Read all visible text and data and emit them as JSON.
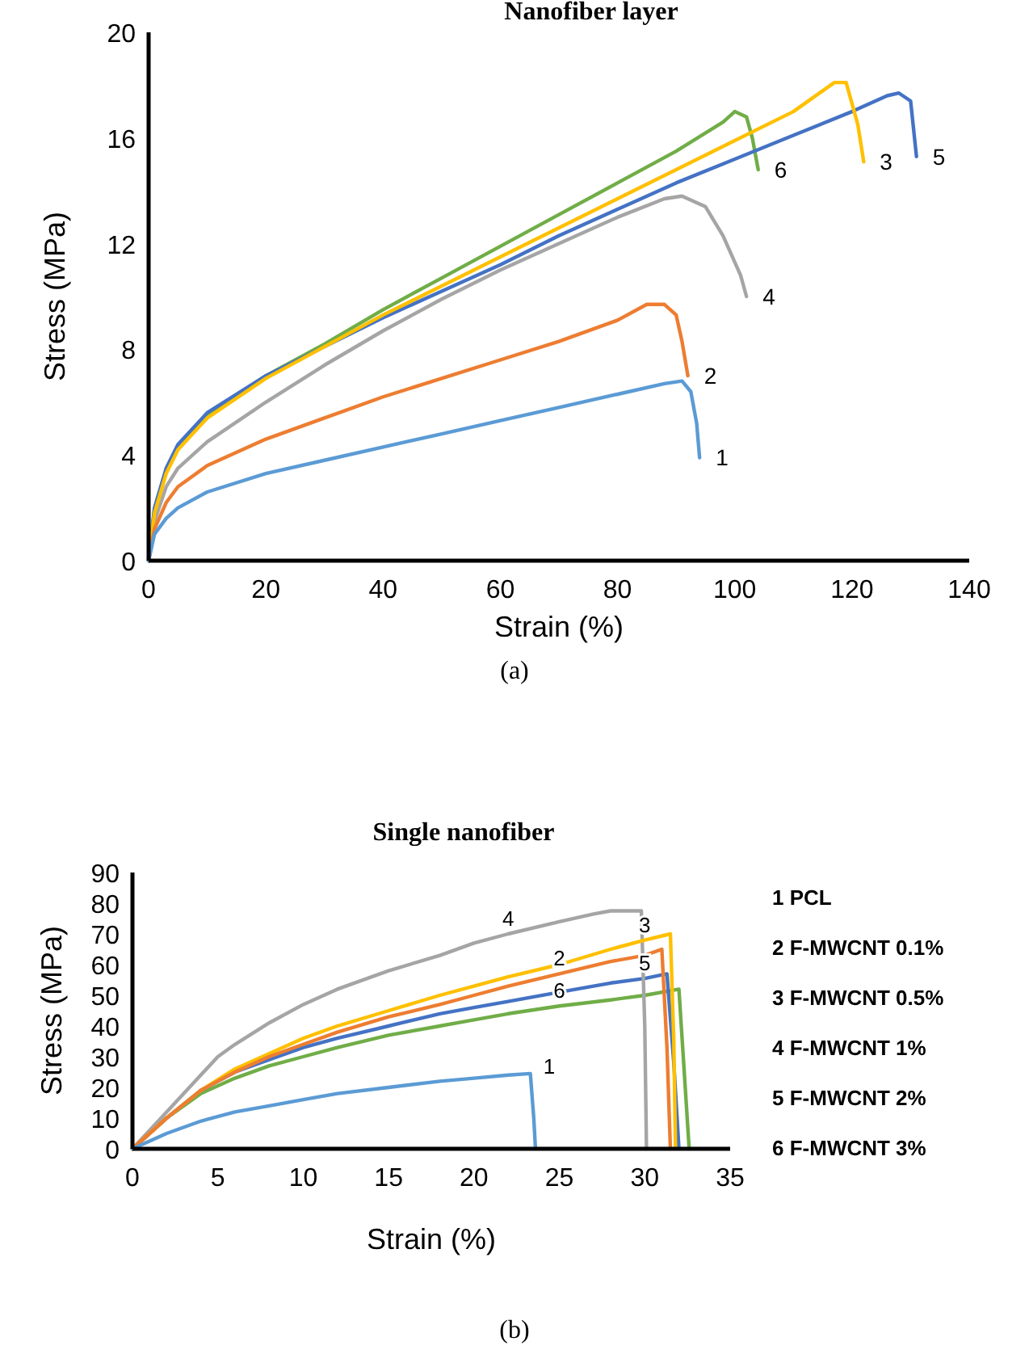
{
  "chart_data": [
    {
      "type": "line",
      "title": "Nanofiber layer",
      "xlabel": "Strain (%)",
      "ylabel": "Stress (MPa)",
      "xlim": [
        0,
        140
      ],
      "xticks": [
        0,
        20,
        40,
        60,
        80,
        100,
        120,
        140
      ],
      "ylim": [
        0,
        20
      ],
      "yticks": [
        0,
        4,
        8,
        12,
        16,
        20
      ],
      "grid": false,
      "annotations": [
        "(a)"
      ],
      "series": [
        {
          "name": "1",
          "color": "#5b9bd5",
          "x": [
            0,
            1,
            3,
            5,
            10,
            20,
            30,
            40,
            50,
            60,
            70,
            80,
            88,
            91,
            92.5,
            93.5,
            94
          ],
          "values": [
            0,
            1.0,
            1.6,
            2.0,
            2.6,
            3.3,
            3.8,
            4.3,
            4.8,
            5.3,
            5.8,
            6.3,
            6.7,
            6.8,
            6.4,
            5.2,
            3.9
          ]
        },
        {
          "name": "2",
          "color": "#ed7d31",
          "x": [
            0,
            1,
            3,
            5,
            10,
            20,
            30,
            40,
            50,
            60,
            70,
            80,
            85,
            88,
            90,
            91,
            92
          ],
          "values": [
            0,
            1.2,
            2.2,
            2.8,
            3.6,
            4.6,
            5.4,
            6.2,
            6.9,
            7.6,
            8.3,
            9.1,
            9.7,
            9.7,
            9.3,
            8.3,
            7.0
          ]
        },
        {
          "name": "3",
          "color": "#ffc000",
          "x": [
            0,
            1,
            3,
            5,
            10,
            20,
            30,
            40,
            50,
            60,
            70,
            80,
            90,
            100,
            110,
            117,
            119,
            121,
            122
          ],
          "values": [
            0,
            1.8,
            3.3,
            4.2,
            5.4,
            6.9,
            8.1,
            9.3,
            10.4,
            11.5,
            12.6,
            13.7,
            14.8,
            15.9,
            17.0,
            18.1,
            18.1,
            16.5,
            15.1
          ]
        },
        {
          "name": "4",
          "color": "#a5a5a5",
          "x": [
            0,
            1,
            3,
            5,
            10,
            20,
            30,
            40,
            50,
            60,
            70,
            80,
            88,
            91,
            95,
            98,
            101,
            102
          ],
          "values": [
            0,
            1.5,
            2.8,
            3.5,
            4.5,
            6.0,
            7.4,
            8.7,
            9.9,
            11.0,
            12.0,
            13.0,
            13.7,
            13.8,
            13.4,
            12.3,
            10.8,
            10.0
          ]
        },
        {
          "name": "5",
          "color": "#4472c4",
          "x": [
            0,
            1,
            3,
            5,
            10,
            20,
            30,
            40,
            50,
            60,
            70,
            80,
            90,
            100,
            110,
            120,
            126,
            128,
            130,
            131
          ],
          "values": [
            0,
            2.0,
            3.5,
            4.4,
            5.6,
            7.0,
            8.1,
            9.2,
            10.2,
            11.2,
            12.3,
            13.3,
            14.3,
            15.2,
            16.1,
            17.0,
            17.6,
            17.7,
            17.4,
            15.3
          ]
        },
        {
          "name": "6",
          "color": "#70ad47",
          "x": [
            0,
            1,
            3,
            5,
            10,
            20,
            30,
            40,
            50,
            60,
            70,
            80,
            90,
            98,
            100,
            102,
            103,
            104
          ],
          "values": [
            0,
            1.9,
            3.4,
            4.3,
            5.5,
            7.0,
            8.2,
            9.5,
            10.7,
            11.9,
            13.1,
            14.3,
            15.5,
            16.6,
            17.0,
            16.8,
            16.0,
            14.8
          ]
        }
      ]
    },
    {
      "type": "line",
      "title": "Single nanofiber",
      "xlabel": "Strain (%)",
      "ylabel": "Stress (MPa)",
      "xlim": [
        0,
        35
      ],
      "xticks": [
        0,
        5,
        10,
        15,
        20,
        25,
        30,
        35
      ],
      "ylim": [
        0,
        90
      ],
      "yticks": [
        0,
        10,
        20,
        30,
        40,
        50,
        60,
        70,
        80,
        90
      ],
      "grid": false,
      "annotations": [
        "1 PCL",
        "2 F-MWCNT 0.1%",
        "3 F-MWCNT 0.5%",
        "4 F-MWCNT 1%",
        "5 F-MWCNT 2%",
        "6 F-MWCNT 3%",
        "(b)"
      ],
      "series": [
        {
          "name": "1",
          "color": "#5b9bd5",
          "x": [
            0,
            2,
            4,
            6,
            8,
            10,
            12,
            15,
            18,
            20,
            22,
            23.3,
            23.5,
            23.6
          ],
          "values": [
            0,
            5,
            9,
            12,
            14,
            16,
            18,
            20,
            22,
            23,
            24,
            24.5,
            10,
            0
          ]
        },
        {
          "name": "2",
          "color": "#ed7d31",
          "x": [
            0,
            2,
            4,
            6,
            8,
            10,
            12,
            15,
            18,
            20,
            22,
            25,
            28,
            30,
            31.0,
            31.3,
            31.5
          ],
          "values": [
            0,
            10,
            19,
            25,
            30,
            34,
            38,
            43,
            47,
            50,
            53,
            57,
            61,
            63,
            65,
            33,
            0
          ]
        },
        {
          "name": "3",
          "color": "#ffc000",
          "x": [
            0,
            2,
            4,
            6,
            8,
            10,
            12,
            15,
            18,
            20,
            22,
            25,
            28,
            30,
            31.5,
            31.7,
            31.8
          ],
          "values": [
            0,
            10,
            19,
            26,
            31,
            36,
            40,
            45,
            50,
            53,
            56,
            60,
            65,
            68,
            70,
            35,
            0
          ]
        },
        {
          "name": "4",
          "color": "#a5a5a5",
          "x": [
            0,
            2,
            4,
            5,
            6,
            8,
            10,
            12,
            15,
            18,
            20,
            22,
            25,
            27,
            28,
            29.8,
            30,
            30.1
          ],
          "values": [
            0,
            12,
            24,
            30,
            34,
            41,
            47,
            52,
            58,
            63,
            67,
            70,
            74,
            76.5,
            77.5,
            77.5,
            40,
            0
          ]
        },
        {
          "name": "5",
          "color": "#4472c4",
          "x": [
            0,
            2,
            4,
            6,
            8,
            10,
            12,
            15,
            18,
            20,
            22,
            25,
            28,
            30,
            31.3,
            31.7,
            32.0
          ],
          "values": [
            0,
            10,
            19,
            25,
            29,
            33,
            36,
            40,
            44,
            46,
            48,
            51,
            54,
            55.5,
            57,
            28,
            0
          ]
        },
        {
          "name": "6",
          "color": "#70ad47",
          "x": [
            0,
            2,
            4,
            6,
            8,
            10,
            12,
            15,
            18,
            20,
            22,
            25,
            28,
            30,
            32.0,
            32.3,
            32.6
          ],
          "values": [
            0,
            10,
            18,
            23,
            27,
            30,
            33,
            37,
            40,
            42,
            44,
            46.5,
            48.5,
            50,
            52,
            26,
            0
          ]
        }
      ]
    }
  ]
}
